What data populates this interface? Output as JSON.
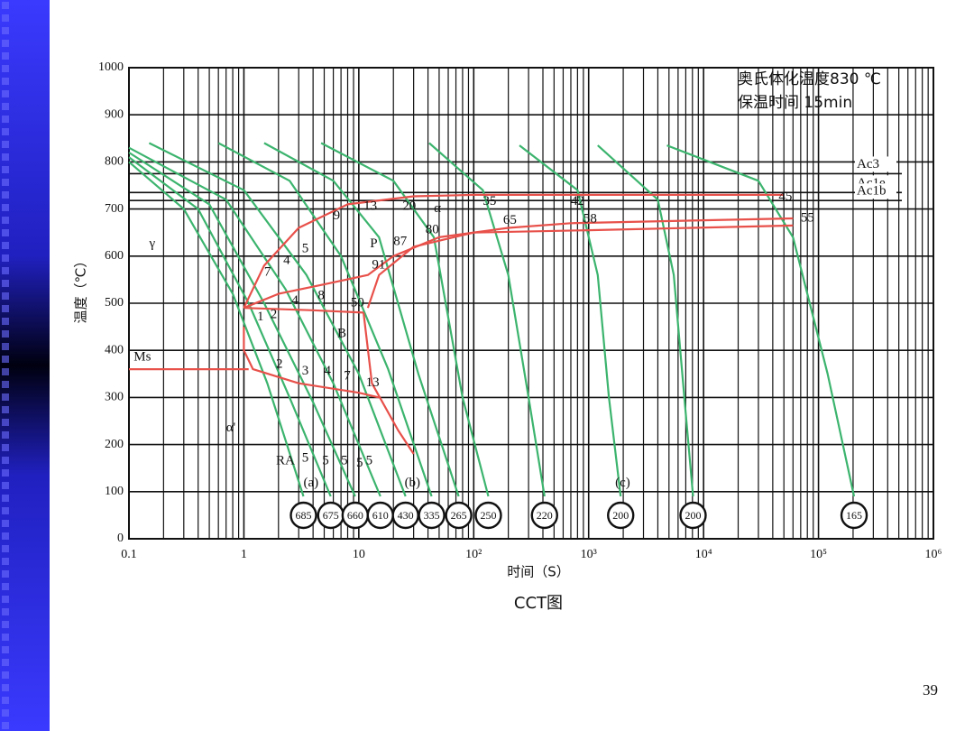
{
  "page_number": "39",
  "chart_data": {
    "type": "line",
    "title": "CCT图",
    "subtitle_lines": [
      "奥氏体化温度830 ℃",
      "保温时间 15min"
    ],
    "xlabel": "时间（S）",
    "ylabel": "温度（℃）",
    "xlog": true,
    "grid": true,
    "minor_grid": true,
    "xlim": [
      0.1,
      1000000
    ],
    "xticks": [
      0.1,
      1,
      10,
      {
        "value": 100,
        "label": "10²"
      },
      {
        "value": 1000,
        "label": "10³"
      },
      {
        "value": 10000,
        "label": "10⁴"
      },
      {
        "value": 100000,
        "label": "10⁵"
      },
      {
        "value": 1000000,
        "label": "10⁶"
      }
    ],
    "ylim": [
      0,
      1000
    ],
    "yticks": [
      0,
      100,
      200,
      300,
      400,
      500,
      600,
      700,
      800,
      900,
      1000
    ],
    "reference_lines": [
      {
        "label": "Ac3",
        "value": 775
      },
      {
        "label": "Ac1e",
        "value": 735
      },
      {
        "label": "Ac1b",
        "value": 718
      }
    ],
    "series": [
      {
        "color": "#3cb46e",
        "hardness": 685,
        "x": [
          0.1,
          0.3,
          0.8,
          1.6,
          3.3
        ],
        "values": [
          800,
          700,
          520,
          330,
          90
        ]
      },
      {
        "color": "#3cb46e",
        "hardness": 675,
        "x": [
          0.1,
          0.4,
          1.1,
          2.5,
          5.7
        ],
        "values": [
          810,
          700,
          500,
          300,
          90
        ]
      },
      {
        "color": "#3cb46e",
        "hardness": 660,
        "x": [
          0.1,
          0.5,
          1.5,
          4,
          9.3
        ],
        "values": [
          820,
          710,
          500,
          290,
          90
        ]
      },
      {
        "color": "#3cb46e",
        "hardness": 610,
        "x": [
          0.1,
          0.7,
          2.3,
          6,
          15.4
        ],
        "values": [
          830,
          720,
          530,
          330,
          90
        ]
      },
      {
        "color": "#3cb46e",
        "hardness": 430,
        "x": [
          0.15,
          1,
          3.5,
          10,
          25.5
        ],
        "values": [
          840,
          740,
          560,
          350,
          90
        ]
      },
      {
        "color": "#3cb46e",
        "hardness": 335,
        "x": [
          0.6,
          2.5,
          7,
          18,
          43
        ],
        "values": [
          840,
          760,
          600,
          360,
          90
        ]
      },
      {
        "color": "#3cb46e",
        "hardness": 265,
        "x": [
          1.5,
          6,
          15,
          33,
          74
        ],
        "values": [
          840,
          760,
          640,
          350,
          90
        ]
      },
      {
        "color": "#3cb46e",
        "hardness": 250,
        "x": [
          4.7,
          20,
          45,
          80,
          134
        ],
        "values": [
          840,
          760,
          640,
          300,
          90
        ]
      },
      {
        "color": "#3cb46e",
        "hardness": 220,
        "x": [
          41,
          120,
          200,
          300,
          413
        ],
        "values": [
          840,
          740,
          560,
          300,
          90
        ]
      },
      {
        "color": "#3cb46e",
        "hardness": 200,
        "x": [
          250,
          800,
          1200,
          1500,
          1900
        ],
        "values": [
          835,
          740,
          560,
          300,
          90
        ]
      },
      {
        "color": "#3cb46e",
        "hardness": 200,
        "x": [
          1200,
          4000,
          5500,
          6800,
          8100
        ],
        "values": [
          835,
          720,
          560,
          300,
          90
        ]
      },
      {
        "color": "#3cb46e",
        "hardness": 165,
        "x": [
          4800,
          30000,
          60000,
          120000,
          204000
        ],
        "values": [
          835,
          760,
          640,
          350,
          90
        ]
      },
      {
        "color": "#e8504a",
        "x": [
          0.1,
          1.1
        ],
        "values": [
          360,
          360
        ]
      },
      {
        "color": "#e8504a",
        "x": [
          1,
          1.5,
          3,
          8,
          30,
          100,
          50000
        ],
        "values": [
          490,
          580,
          660,
          710,
          727,
          730,
          730
        ]
      },
      {
        "color": "#e8504a",
        "x": [
          1,
          2,
          5,
          12,
          20,
          50,
          200,
          700,
          60000
        ],
        "values": [
          490,
          520,
          540,
          560,
          600,
          640,
          660,
          670,
          680
        ]
      },
      {
        "color": "#e8504a",
        "x": [
          12,
          15,
          30,
          100,
          1000,
          60000
        ],
        "values": [
          490,
          560,
          620,
          650,
          655,
          665
        ]
      },
      {
        "color": "#e8504a",
        "x": [
          1,
          1,
          1.2,
          3,
          10,
          15
        ],
        "values": [
          450,
          400,
          360,
          330,
          310,
          300
        ]
      },
      {
        "color": "#e8504a",
        "x": [
          1,
          4,
          11
        ],
        "values": [
          490,
          485,
          480
        ]
      },
      {
        "color": "#e8504a",
        "x": [
          11,
          13,
          22,
          30
        ],
        "values": [
          480,
          330,
          230,
          180
        ]
      }
    ],
    "annotations": [
      {
        "text": "γ",
        "x": 0.15,
        "y": 625
      },
      {
        "text": "α",
        "x": 45,
        "y": 700
      },
      {
        "text": "P",
        "x": 12.5,
        "y": 625
      },
      {
        "text": "B",
        "x": 6.5,
        "y": 435
      },
      {
        "text": "Ms",
        "x": 0.11,
        "y": 385
      },
      {
        "text": "α'",
        "x": 0.7,
        "y": 235
      },
      {
        "text": "RA",
        "x": 1.9,
        "y": 165
      },
      {
        "text": "5",
        "x": 3.2,
        "y": 170
      },
      {
        "text": "5",
        "x": 4.8,
        "y": 165
      },
      {
        "text": "5",
        "x": 7,
        "y": 165
      },
      {
        "text": "5",
        "x": 9.5,
        "y": 160
      },
      {
        "text": "5",
        "x": 11.5,
        "y": 165
      },
      {
        "text": "(a)",
        "x": 3.3,
        "y": 118
      },
      {
        "text": "(b)",
        "x": 25,
        "y": 118
      },
      {
        "text": "(c)",
        "x": 1700,
        "y": 118
      },
      {
        "text": "9",
        "x": 6,
        "y": 685
      },
      {
        "text": "13",
        "x": 11,
        "y": 705
      },
      {
        "text": "20",
        "x": 24,
        "y": 705
      },
      {
        "text": "35",
        "x": 120,
        "y": 715
      },
      {
        "text": "42",
        "x": 700,
        "y": 715
      },
      {
        "text": "45",
        "x": 45000,
        "y": 725
      },
      {
        "text": "65",
        "x": 180,
        "y": 675
      },
      {
        "text": "58",
        "x": 900,
        "y": 678
      },
      {
        "text": "55",
        "x": 70000,
        "y": 680
      },
      {
        "text": "87",
        "x": 20,
        "y": 630
      },
      {
        "text": "80",
        "x": 38,
        "y": 655
      },
      {
        "text": "91",
        "x": 13,
        "y": 580
      },
      {
        "text": "7",
        "x": 1.5,
        "y": 565
      },
      {
        "text": "4",
        "x": 2.2,
        "y": 590
      },
      {
        "text": "5",
        "x": 3.2,
        "y": 615
      },
      {
        "text": "8",
        "x": 4.4,
        "y": 515
      },
      {
        "text": "4",
        "x": 2.6,
        "y": 505
      },
      {
        "text": "50",
        "x": 8.5,
        "y": 500
      },
      {
        "text": "1",
        "x": 1.3,
        "y": 470
      },
      {
        "text": "2",
        "x": 1.7,
        "y": 475
      },
      {
        "text": "2",
        "x": 1.9,
        "y": 370
      },
      {
        "text": "3",
        "x": 3.2,
        "y": 355
      },
      {
        "text": "4",
        "x": 5,
        "y": 355
      },
      {
        "text": "7",
        "x": 7.4,
        "y": 345
      },
      {
        "text": "13",
        "x": 11.5,
        "y": 330
      }
    ]
  }
}
